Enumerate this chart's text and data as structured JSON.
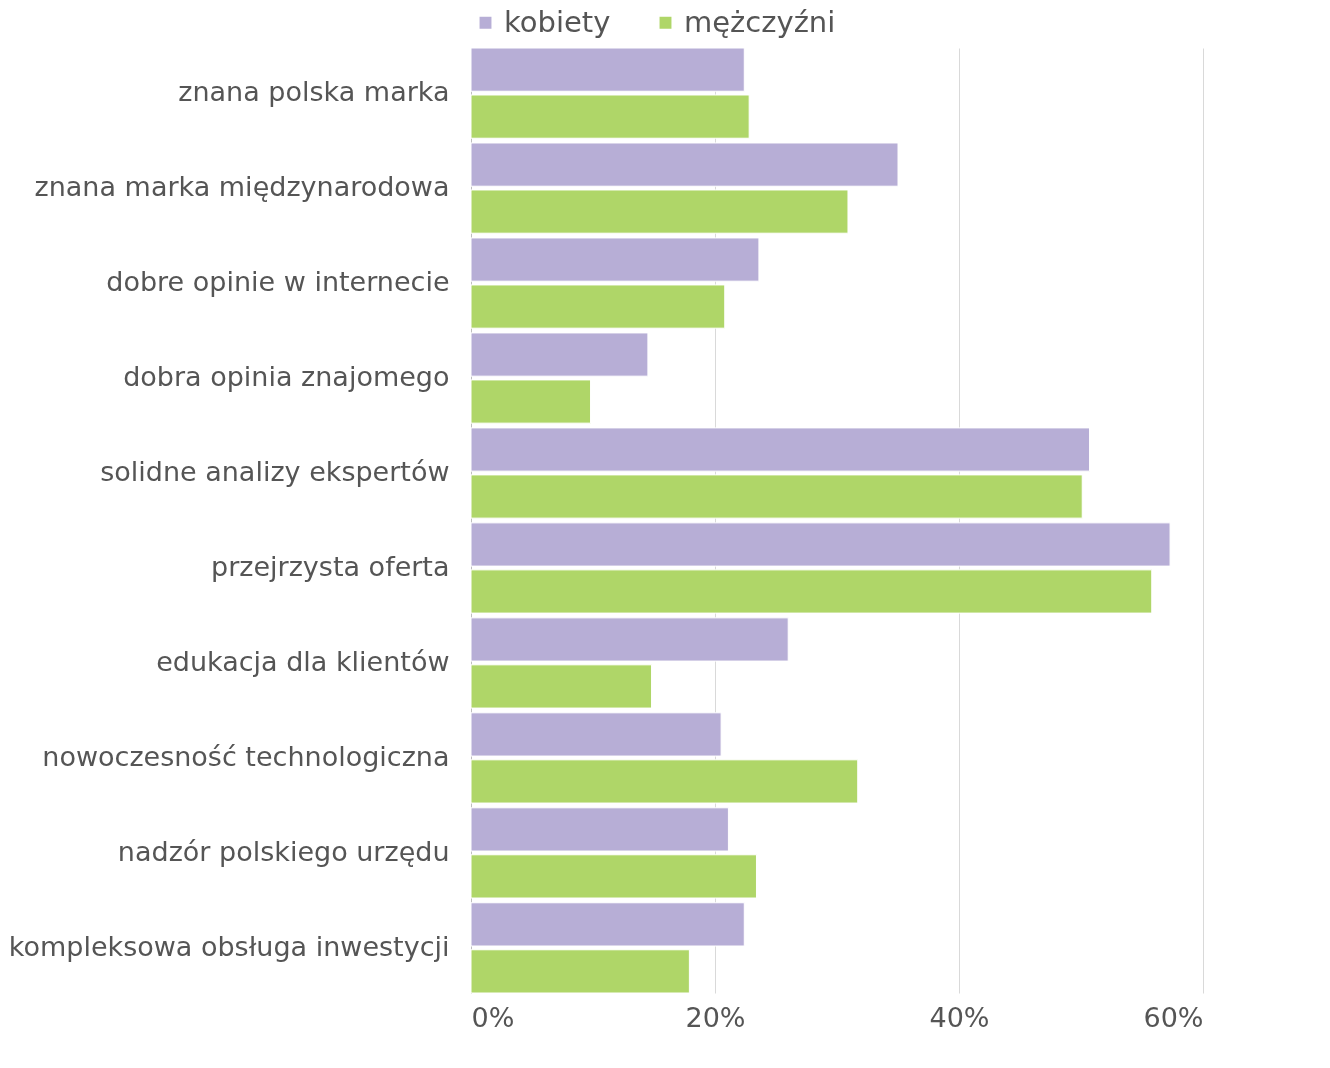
{
  "chart_data": {
    "type": "bar",
    "orientation": "horizontal",
    "categories": [
      "znana polska marka",
      "znana marka międzynarodowa",
      "dobre opinie w internecie",
      "dobra opinia znajomego",
      "solidne analizy ekspertów",
      "przejrzysta oferta",
      "edukacja dla klientów",
      "nowoczesność technologiczna",
      "nadzór polskiego urzędu",
      "kompleksowa obsługa inwestycji"
    ],
    "series": [
      {
        "name": "kobiety",
        "color": "#b7aed6",
        "values": [
          22.4,
          35.0,
          23.6,
          14.5,
          50.7,
          57.3,
          26.0,
          20.5,
          21.1,
          22.4
        ]
      },
      {
        "name": "mężczyźni",
        "color": "#afd668",
        "values": [
          22.8,
          30.9,
          20.8,
          9.8,
          50.1,
          55.8,
          14.8,
          31.7,
          23.4,
          17.9
        ]
      }
    ],
    "xlim": [
      0,
      60
    ],
    "xticks": [
      {
        "value": 0,
        "label": "0%"
      },
      {
        "value": 20,
        "label": "20%"
      },
      {
        "value": 40,
        "label": "40%"
      },
      {
        "value": 60,
        "label": "60%"
      }
    ],
    "grid": "x",
    "legend": "top"
  }
}
